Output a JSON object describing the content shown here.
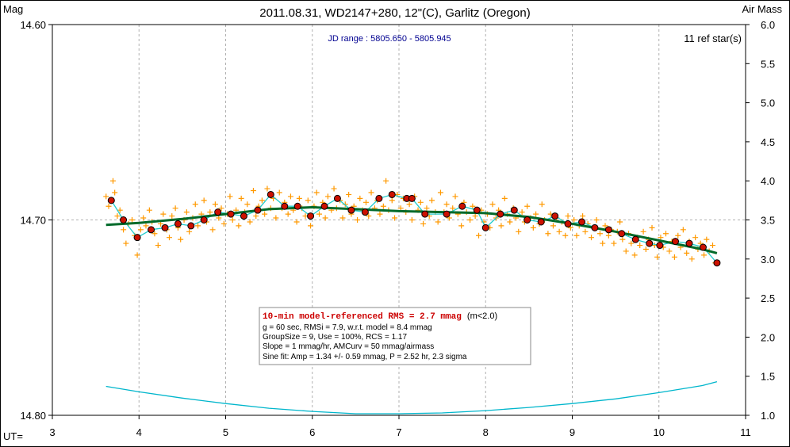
{
  "chart_data": {
    "type": "scatter",
    "title": "2011.08.31, WD2147+280, 12\"(C), Garlitz (Oregon)",
    "ylabel_left": "Mag",
    "ylabel_right": "Air Mass",
    "xlabel": "UT=",
    "x_ticks": [
      "3",
      "4",
      "5",
      "6",
      "7",
      "8",
      "9",
      "10",
      "11"
    ],
    "y_left_ticks": [
      "14.60",
      "14.70",
      "14.80"
    ],
    "y_right_ticks": [
      "6.0",
      "5.5",
      "5.0",
      "4.5",
      "4.0",
      "3.5",
      "3.0",
      "2.5",
      "2.0",
      "1.5",
      "1.0"
    ],
    "xlim": [
      3,
      11
    ],
    "ylim_mag": [
      14.8,
      14.6
    ],
    "ylim_airmass": [
      1.0,
      6.0
    ],
    "grid": true,
    "jd_range": "JD range : 5805.650 - 5805.945",
    "ref_stars": "11 ref star(s)",
    "colors": {
      "frame": "#000000",
      "grid": "#b0b0b0",
      "points": "#ff9900",
      "binned_fill": "#cc1100",
      "binned_edge": "#000000",
      "model": "#006a2a",
      "fine_fit": "#22cccc",
      "airmass": "#00b6cc",
      "rms_text": "#cc0000",
      "jd_text": "#000090"
    },
    "binned_points": [
      {
        "x": 3.68,
        "y": 14.69
      },
      {
        "x": 3.82,
        "y": 14.7
      },
      {
        "x": 3.98,
        "y": 14.709
      },
      {
        "x": 4.14,
        "y": 14.705
      },
      {
        "x": 4.3,
        "y": 14.704
      },
      {
        "x": 4.45,
        "y": 14.702
      },
      {
        "x": 4.6,
        "y": 14.703
      },
      {
        "x": 4.75,
        "y": 14.7
      },
      {
        "x": 4.91,
        "y": 14.696
      },
      {
        "x": 5.06,
        "y": 14.697
      },
      {
        "x": 5.21,
        "y": 14.698
      },
      {
        "x": 5.37,
        "y": 14.695
      },
      {
        "x": 5.52,
        "y": 14.687
      },
      {
        "x": 5.68,
        "y": 14.693
      },
      {
        "x": 5.83,
        "y": 14.693
      },
      {
        "x": 5.98,
        "y": 14.698
      },
      {
        "x": 6.14,
        "y": 14.693
      },
      {
        "x": 6.29,
        "y": 14.689
      },
      {
        "x": 6.45,
        "y": 14.695
      },
      {
        "x": 6.61,
        "y": 14.696
      },
      {
        "x": 6.77,
        "y": 14.689
      },
      {
        "x": 6.92,
        "y": 14.687
      },
      {
        "x": 7.09,
        "y": 14.689
      },
      {
        "x": 7.15,
        "y": 14.689
      },
      {
        "x": 7.3,
        "y": 14.697
      },
      {
        "x": 7.55,
        "y": 14.697
      },
      {
        "x": 7.73,
        "y": 14.693
      },
      {
        "x": 7.9,
        "y": 14.695
      },
      {
        "x": 8.0,
        "y": 14.704
      },
      {
        "x": 8.17,
        "y": 14.697
      },
      {
        "x": 8.33,
        "y": 14.695
      },
      {
        "x": 8.48,
        "y": 14.7
      },
      {
        "x": 8.64,
        "y": 14.701
      },
      {
        "x": 8.8,
        "y": 14.698
      },
      {
        "x": 8.95,
        "y": 14.702
      },
      {
        "x": 9.11,
        "y": 14.701
      },
      {
        "x": 9.26,
        "y": 14.704
      },
      {
        "x": 9.42,
        "y": 14.705
      },
      {
        "x": 9.57,
        "y": 14.707
      },
      {
        "x": 9.73,
        "y": 14.71
      },
      {
        "x": 9.89,
        "y": 14.712
      },
      {
        "x": 10.01,
        "y": 14.713
      },
      {
        "x": 10.19,
        "y": 14.711
      },
      {
        "x": 10.35,
        "y": 14.712
      },
      {
        "x": 10.51,
        "y": 14.714
      },
      {
        "x": 10.67,
        "y": 14.722
      }
    ],
    "model_curve": [
      {
        "x": 3.62,
        "y": 14.7025
      },
      {
        "x": 4.0,
        "y": 14.7015
      },
      {
        "x": 4.5,
        "y": 14.6995
      },
      {
        "x": 5.0,
        "y": 14.697
      },
      {
        "x": 5.5,
        "y": 14.6945
      },
      {
        "x": 6.0,
        "y": 14.6935
      },
      {
        "x": 6.5,
        "y": 14.6945
      },
      {
        "x": 7.0,
        "y": 14.6955
      },
      {
        "x": 7.5,
        "y": 14.696
      },
      {
        "x": 8.0,
        "y": 14.6965
      },
      {
        "x": 8.5,
        "y": 14.6985
      },
      {
        "x": 9.0,
        "y": 14.702
      },
      {
        "x": 9.5,
        "y": 14.706
      },
      {
        "x": 10.0,
        "y": 14.7105
      },
      {
        "x": 10.5,
        "y": 14.715
      },
      {
        "x": 10.67,
        "y": 14.717
      }
    ],
    "airmass_curve": [
      {
        "x": 3.62,
        "y": 1.37
      },
      {
        "x": 4.0,
        "y": 1.3
      },
      {
        "x": 4.5,
        "y": 1.22
      },
      {
        "x": 5.0,
        "y": 1.15
      },
      {
        "x": 5.5,
        "y": 1.09
      },
      {
        "x": 6.0,
        "y": 1.05
      },
      {
        "x": 6.5,
        "y": 1.02
      },
      {
        "x": 7.0,
        "y": 1.02
      },
      {
        "x": 7.5,
        "y": 1.03
      },
      {
        "x": 8.0,
        "y": 1.06
      },
      {
        "x": 8.5,
        "y": 1.1
      },
      {
        "x": 9.0,
        "y": 1.15
      },
      {
        "x": 9.5,
        "y": 1.21
      },
      {
        "x": 10.0,
        "y": 1.29
      },
      {
        "x": 10.5,
        "y": 1.38
      },
      {
        "x": 10.67,
        "y": 1.43
      }
    ],
    "raw_points": [
      {
        "x": 3.62,
        "y": 14.688
      },
      {
        "x": 3.65,
        "y": 14.693
      },
      {
        "x": 3.7,
        "y": 14.68
      },
      {
        "x": 3.72,
        "y": 14.686
      },
      {
        "x": 3.75,
        "y": 14.698
      },
      {
        "x": 3.78,
        "y": 14.695
      },
      {
        "x": 3.82,
        "y": 14.705
      },
      {
        "x": 3.85,
        "y": 14.712
      },
      {
        "x": 3.88,
        "y": 14.702
      },
      {
        "x": 3.92,
        "y": 14.7
      },
      {
        "x": 3.95,
        "y": 14.708
      },
      {
        "x": 3.98,
        "y": 14.718
      },
      {
        "x": 4.02,
        "y": 14.705
      },
      {
        "x": 4.05,
        "y": 14.699
      },
      {
        "x": 4.08,
        "y": 14.703
      },
      {
        "x": 4.12,
        "y": 14.695
      },
      {
        "x": 4.15,
        "y": 14.701
      },
      {
        "x": 4.18,
        "y": 14.707
      },
      {
        "x": 4.22,
        "y": 14.713
      },
      {
        "x": 4.25,
        "y": 14.702
      },
      {
        "x": 4.28,
        "y": 14.697
      },
      {
        "x": 4.32,
        "y": 14.705
      },
      {
        "x": 4.35,
        "y": 14.709
      },
      {
        "x": 4.38,
        "y": 14.698
      },
      {
        "x": 4.42,
        "y": 14.694
      },
      {
        "x": 4.45,
        "y": 14.704
      },
      {
        "x": 4.48,
        "y": 14.71
      },
      {
        "x": 4.52,
        "y": 14.7
      },
      {
        "x": 4.55,
        "y": 14.696
      },
      {
        "x": 4.58,
        "y": 14.706
      },
      {
        "x": 4.62,
        "y": 14.699
      },
      {
        "x": 4.65,
        "y": 14.692
      },
      {
        "x": 4.68,
        "y": 14.703
      },
      {
        "x": 4.72,
        "y": 14.697
      },
      {
        "x": 4.75,
        "y": 14.69
      },
      {
        "x": 4.78,
        "y": 14.701
      },
      {
        "x": 4.82,
        "y": 14.696
      },
      {
        "x": 4.85,
        "y": 14.705
      },
      {
        "x": 4.88,
        "y": 14.692
      },
      {
        "x": 4.92,
        "y": 14.699
      },
      {
        "x": 4.95,
        "y": 14.694
      },
      {
        "x": 4.98,
        "y": 14.702
      },
      {
        "x": 5.02,
        "y": 14.697
      },
      {
        "x": 5.05,
        "y": 14.688
      },
      {
        "x": 5.08,
        "y": 14.7
      },
      {
        "x": 5.12,
        "y": 14.695
      },
      {
        "x": 5.15,
        "y": 14.703
      },
      {
        "x": 5.18,
        "y": 14.689
      },
      {
        "x": 5.22,
        "y": 14.696
      },
      {
        "x": 5.25,
        "y": 14.692
      },
      {
        "x": 5.28,
        "y": 14.701
      },
      {
        "x": 5.32,
        "y": 14.685
      },
      {
        "x": 5.35,
        "y": 14.698
      },
      {
        "x": 5.38,
        "y": 14.693
      },
      {
        "x": 5.42,
        "y": 14.69
      },
      {
        "x": 5.45,
        "y": 14.697
      },
      {
        "x": 5.48,
        "y": 14.684
      },
      {
        "x": 5.52,
        "y": 14.694
      },
      {
        "x": 5.55,
        "y": 14.689
      },
      {
        "x": 5.58,
        "y": 14.699
      },
      {
        "x": 5.62,
        "y": 14.686
      },
      {
        "x": 5.65,
        "y": 14.694
      },
      {
        "x": 5.68,
        "y": 14.691
      },
      {
        "x": 5.72,
        "y": 14.697
      },
      {
        "x": 5.75,
        "y": 14.688
      },
      {
        "x": 5.78,
        "y": 14.695
      },
      {
        "x": 5.82,
        "y": 14.701
      },
      {
        "x": 5.85,
        "y": 14.689
      },
      {
        "x": 5.88,
        "y": 14.694
      },
      {
        "x": 5.92,
        "y": 14.698
      },
      {
        "x": 5.95,
        "y": 14.69
      },
      {
        "x": 5.98,
        "y": 14.703
      },
      {
        "x": 6.02,
        "y": 14.693
      },
      {
        "x": 6.05,
        "y": 14.686
      },
      {
        "x": 6.08,
        "y": 14.697
      },
      {
        "x": 6.12,
        "y": 14.691
      },
      {
        "x": 6.15,
        "y": 14.699
      },
      {
        "x": 6.18,
        "y": 14.688
      },
      {
        "x": 6.22,
        "y": 14.695
      },
      {
        "x": 6.25,
        "y": 14.684
      },
      {
        "x": 6.28,
        "y": 14.694
      },
      {
        "x": 6.32,
        "y": 14.69
      },
      {
        "x": 6.35,
        "y": 14.699
      },
      {
        "x": 6.38,
        "y": 14.692
      },
      {
        "x": 6.42,
        "y": 14.687
      },
      {
        "x": 6.45,
        "y": 14.697
      },
      {
        "x": 6.48,
        "y": 14.693
      },
      {
        "x": 6.52,
        "y": 14.7
      },
      {
        "x": 6.55,
        "y": 14.689
      },
      {
        "x": 6.58,
        "y": 14.695
      },
      {
        "x": 6.62,
        "y": 14.691
      },
      {
        "x": 6.65,
        "y": 14.698
      },
      {
        "x": 6.68,
        "y": 14.686
      },
      {
        "x": 6.72,
        "y": 14.694
      },
      {
        "x": 6.75,
        "y": 14.69
      },
      {
        "x": 6.78,
        "y": 14.697
      },
      {
        "x": 6.82,
        "y": 14.693
      },
      {
        "x": 6.85,
        "y": 14.68
      },
      {
        "x": 6.88,
        "y": 14.695
      },
      {
        "x": 6.92,
        "y": 14.69
      },
      {
        "x": 6.95,
        "y": 14.699
      },
      {
        "x": 6.98,
        "y": 14.687
      },
      {
        "x": 7.02,
        "y": 14.694
      },
      {
        "x": 7.05,
        "y": 14.689
      },
      {
        "x": 7.08,
        "y": 14.696
      },
      {
        "x": 7.12,
        "y": 14.692
      },
      {
        "x": 7.15,
        "y": 14.7
      },
      {
        "x": 7.18,
        "y": 14.688
      },
      {
        "x": 7.22,
        "y": 14.695
      },
      {
        "x": 7.25,
        "y": 14.691
      },
      {
        "x": 7.28,
        "y": 14.702
      },
      {
        "x": 7.32,
        "y": 14.694
      },
      {
        "x": 7.35,
        "y": 14.698
      },
      {
        "x": 7.38,
        "y": 14.69
      },
      {
        "x": 7.42,
        "y": 14.696
      },
      {
        "x": 7.45,
        "y": 14.701
      },
      {
        "x": 7.48,
        "y": 14.686
      },
      {
        "x": 7.52,
        "y": 14.696
      },
      {
        "x": 7.55,
        "y": 14.692
      },
      {
        "x": 7.58,
        "y": 14.699
      },
      {
        "x": 7.62,
        "y": 14.694
      },
      {
        "x": 7.65,
        "y": 14.688
      },
      {
        "x": 7.68,
        "y": 14.697
      },
      {
        "x": 7.72,
        "y": 14.703
      },
      {
        "x": 7.75,
        "y": 14.691
      },
      {
        "x": 7.78,
        "y": 14.696
      },
      {
        "x": 7.82,
        "y": 14.7
      },
      {
        "x": 7.85,
        "y": 14.693
      },
      {
        "x": 7.88,
        "y": 14.698
      },
      {
        "x": 7.92,
        "y": 14.708
      },
      {
        "x": 7.95,
        "y": 14.695
      },
      {
        "x": 7.98,
        "y": 14.701
      },
      {
        "x": 8.02,
        "y": 14.697
      },
      {
        "x": 8.05,
        "y": 14.704
      },
      {
        "x": 8.08,
        "y": 14.692
      },
      {
        "x": 8.12,
        "y": 14.699
      },
      {
        "x": 8.15,
        "y": 14.695
      },
      {
        "x": 8.18,
        "y": 14.703
      },
      {
        "x": 8.22,
        "y": 14.689
      },
      {
        "x": 8.25,
        "y": 14.697
      },
      {
        "x": 8.28,
        "y": 14.701
      },
      {
        "x": 8.32,
        "y": 14.694
      },
      {
        "x": 8.35,
        "y": 14.699
      },
      {
        "x": 8.38,
        "y": 14.706
      },
      {
        "x": 8.42,
        "y": 14.696
      },
      {
        "x": 8.45,
        "y": 14.701
      },
      {
        "x": 8.48,
        "y": 14.693
      },
      {
        "x": 8.52,
        "y": 14.699
      },
      {
        "x": 8.55,
        "y": 14.704
      },
      {
        "x": 8.58,
        "y": 14.697
      },
      {
        "x": 8.62,
        "y": 14.702
      },
      {
        "x": 8.65,
        "y": 14.692
      },
      {
        "x": 8.68,
        "y": 14.7
      },
      {
        "x": 8.72,
        "y": 14.707
      },
      {
        "x": 8.75,
        "y": 14.697
      },
      {
        "x": 8.78,
        "y": 14.703
      },
      {
        "x": 8.82,
        "y": 14.699
      },
      {
        "x": 8.85,
        "y": 14.706
      },
      {
        "x": 8.88,
        "y": 14.701
      },
      {
        "x": 8.92,
        "y": 14.708
      },
      {
        "x": 8.95,
        "y": 14.698
      },
      {
        "x": 8.98,
        "y": 14.704
      },
      {
        "x": 9.02,
        "y": 14.7
      },
      {
        "x": 9.05,
        "y": 14.708
      },
      {
        "x": 9.08,
        "y": 14.703
      },
      {
        "x": 9.12,
        "y": 14.698
      },
      {
        "x": 9.15,
        "y": 14.706
      },
      {
        "x": 9.18,
        "y": 14.702
      },
      {
        "x": 9.22,
        "y": 14.709
      },
      {
        "x": 9.25,
        "y": 14.704
      },
      {
        "x": 9.28,
        "y": 14.7
      },
      {
        "x": 9.32,
        "y": 14.707
      },
      {
        "x": 9.35,
        "y": 14.712
      },
      {
        "x": 9.38,
        "y": 14.703
      },
      {
        "x": 9.42,
        "y": 14.708
      },
      {
        "x": 9.45,
        "y": 14.705
      },
      {
        "x": 9.48,
        "y": 14.712
      },
      {
        "x": 9.52,
        "y": 14.706
      },
      {
        "x": 9.55,
        "y": 14.701
      },
      {
        "x": 9.58,
        "y": 14.71
      },
      {
        "x": 9.62,
        "y": 14.716
      },
      {
        "x": 9.65,
        "y": 14.707
      },
      {
        "x": 9.68,
        "y": 14.712
      },
      {
        "x": 9.72,
        "y": 14.718
      },
      {
        "x": 9.75,
        "y": 14.709
      },
      {
        "x": 9.78,
        "y": 14.713
      },
      {
        "x": 9.82,
        "y": 14.706
      },
      {
        "x": 9.85,
        "y": 14.715
      },
      {
        "x": 9.88,
        "y": 14.71
      },
      {
        "x": 9.92,
        "y": 14.704
      },
      {
        "x": 9.95,
        "y": 14.713
      },
      {
        "x": 9.98,
        "y": 14.719
      },
      {
        "x": 10.02,
        "y": 14.709
      },
      {
        "x": 10.05,
        "y": 14.714
      },
      {
        "x": 10.08,
        "y": 14.707
      },
      {
        "x": 10.12,
        "y": 14.716
      },
      {
        "x": 10.15,
        "y": 14.711
      },
      {
        "x": 10.18,
        "y": 14.719
      },
      {
        "x": 10.22,
        "y": 14.708
      },
      {
        "x": 10.25,
        "y": 14.714
      },
      {
        "x": 10.28,
        "y": 14.705
      },
      {
        "x": 10.32,
        "y": 14.717
      },
      {
        "x": 10.35,
        "y": 14.711
      },
      {
        "x": 10.38,
        "y": 14.72
      },
      {
        "x": 10.42,
        "y": 14.709
      },
      {
        "x": 10.45,
        "y": 14.715
      },
      {
        "x": 10.48,
        "y": 14.712
      },
      {
        "x": 10.52,
        "y": 14.718
      },
      {
        "x": 10.55,
        "y": 14.71
      },
      {
        "x": 10.58,
        "y": 14.716
      },
      {
        "x": 10.62,
        "y": 14.713
      },
      {
        "x": 10.65,
        "y": 14.722
      }
    ],
    "stats": {
      "line1_main": "10-min model-referenced RMS = 2.7 mmag",
      "line1_suffix": "(m<2.0)",
      "line2": "g = 60 sec, RMSi = 7.9, w.r.t. model = 8.4 mmag",
      "line3": "GroupSize = 9, Use = 100%, RCS = 1.17",
      "line4": "Slope = 1 mmag/hr, AMCurv = 50 mmag/airmass",
      "line5": "Sine fit: Amp = 1.34 +/- 0.59 mmag, P = 2.52 hr, 2.3 sigma"
    }
  }
}
